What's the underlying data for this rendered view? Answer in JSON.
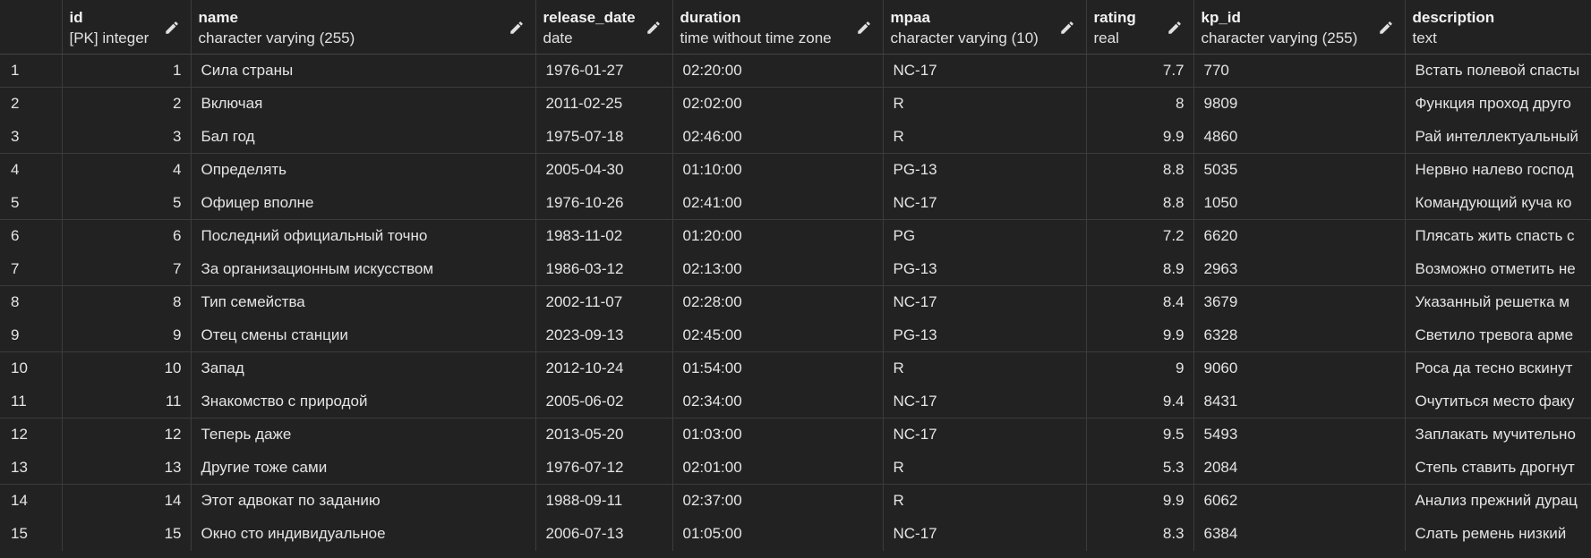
{
  "columns": [
    {
      "name": "id",
      "type": "[PK] integer"
    },
    {
      "name": "name",
      "type": "character varying (255)"
    },
    {
      "name": "release_date",
      "type": "date"
    },
    {
      "name": "duration",
      "type": "time without time zone"
    },
    {
      "name": "mpaa",
      "type": "character varying (10)"
    },
    {
      "name": "rating",
      "type": "real"
    },
    {
      "name": "kp_id",
      "type": "character varying (255)"
    },
    {
      "name": "description",
      "type": "text"
    }
  ],
  "rows": [
    {
      "n": "1",
      "id": "1",
      "name": "Сила страны",
      "release_date": "1976-01-27",
      "duration": "02:20:00",
      "mpaa": "NC-17",
      "rating": "7.7",
      "kp_id": "770",
      "description": "Встать полевой спасты"
    },
    {
      "n": "2",
      "id": "2",
      "name": "Включая",
      "release_date": "2011-02-25",
      "duration": "02:02:00",
      "mpaa": "R",
      "rating": "8",
      "kp_id": "9809",
      "description": "Функция проход друго"
    },
    {
      "n": "3",
      "id": "3",
      "name": "Бал год",
      "release_date": "1975-07-18",
      "duration": "02:46:00",
      "mpaa": "R",
      "rating": "9.9",
      "kp_id": "4860",
      "description": "Рай интеллектуальный"
    },
    {
      "n": "4",
      "id": "4",
      "name": "Определять",
      "release_date": "2005-04-30",
      "duration": "01:10:00",
      "mpaa": "PG-13",
      "rating": "8.8",
      "kp_id": "5035",
      "description": "Нервно налево господ"
    },
    {
      "n": "5",
      "id": "5",
      "name": "Офицер вполне",
      "release_date": "1976-10-26",
      "duration": "02:41:00",
      "mpaa": "NC-17",
      "rating": "8.8",
      "kp_id": "1050",
      "description": "Командующий куча ко"
    },
    {
      "n": "6",
      "id": "6",
      "name": "Последний официальный точно",
      "release_date": "1983-11-02",
      "duration": "01:20:00",
      "mpaa": "PG",
      "rating": "7.2",
      "kp_id": "6620",
      "description": "Плясать жить спасть с"
    },
    {
      "n": "7",
      "id": "7",
      "name": "За организационным искусством",
      "release_date": "1986-03-12",
      "duration": "02:13:00",
      "mpaa": "PG-13",
      "rating": "8.9",
      "kp_id": "2963",
      "description": "Возможно отметить не"
    },
    {
      "n": "8",
      "id": "8",
      "name": "Тип семейства",
      "release_date": "2002-11-07",
      "duration": "02:28:00",
      "mpaa": "NC-17",
      "rating": "8.4",
      "kp_id": "3679",
      "description": "Указанный решетка м"
    },
    {
      "n": "9",
      "id": "9",
      "name": "Отец смены станции",
      "release_date": "2023-09-13",
      "duration": "02:45:00",
      "mpaa": "PG-13",
      "rating": "9.9",
      "kp_id": "6328",
      "description": "Светило тревога арме"
    },
    {
      "n": "10",
      "id": "10",
      "name": "Запад",
      "release_date": "2012-10-24",
      "duration": "01:54:00",
      "mpaa": "R",
      "rating": "9",
      "kp_id": "9060",
      "description": "Роса да тесно вскинут"
    },
    {
      "n": "11",
      "id": "11",
      "name": "Знакомство с природой",
      "release_date": "2005-06-02",
      "duration": "02:34:00",
      "mpaa": "NC-17",
      "rating": "9.4",
      "kp_id": "8431",
      "description": "Очутиться место факу"
    },
    {
      "n": "12",
      "id": "12",
      "name": "Теперь даже",
      "release_date": "2013-05-20",
      "duration": "01:03:00",
      "mpaa": "NC-17",
      "rating": "9.5",
      "kp_id": "5493",
      "description": "Заплакать мучительно"
    },
    {
      "n": "13",
      "id": "13",
      "name": "Другие тоже сами",
      "release_date": "1976-07-12",
      "duration": "02:01:00",
      "mpaa": "R",
      "rating": "5.3",
      "kp_id": "2084",
      "description": "Степь ставить дрогнут"
    },
    {
      "n": "14",
      "id": "14",
      "name": "Этот адвокат по заданию",
      "release_date": "1988-09-11",
      "duration": "02:37:00",
      "mpaa": "R",
      "rating": "9.9",
      "kp_id": "6062",
      "description": "Анализ прежний дурац"
    },
    {
      "n": "15",
      "id": "15",
      "name": "Окно сто индивидуальное",
      "release_date": "2006-07-13",
      "duration": "01:05:00",
      "mpaa": "NC-17",
      "rating": "8.3",
      "kp_id": "6384",
      "description": "Слать ремень низкий"
    }
  ],
  "icons": {
    "column_edit": "pencil-icon"
  }
}
